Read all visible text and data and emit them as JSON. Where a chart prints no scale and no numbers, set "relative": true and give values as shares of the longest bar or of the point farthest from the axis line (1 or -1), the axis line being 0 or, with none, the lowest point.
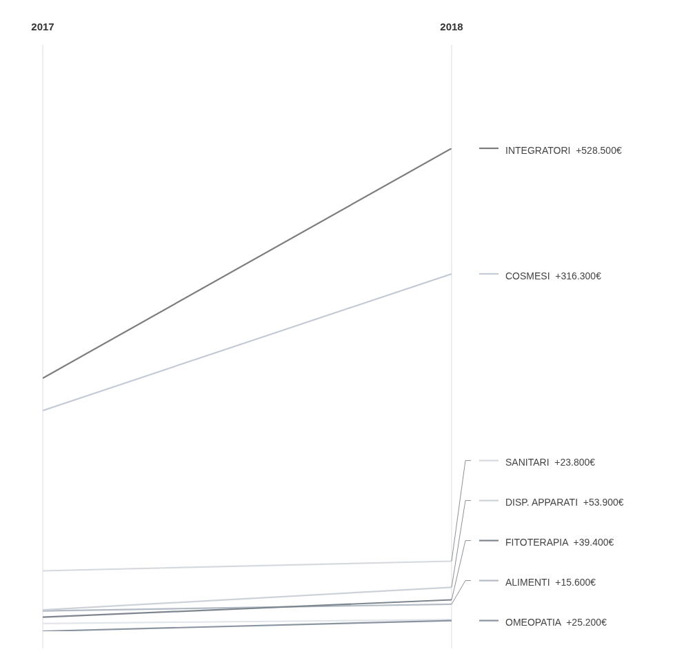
{
  "chart_data": {
    "type": "line",
    "relative": true,
    "x": [
      2017,
      2018
    ],
    "xlim": [
      2017,
      2018
    ],
    "xticks": [
      2017,
      2018
    ],
    "grid": "x",
    "legend": "right",
    "marker": "none",
    "line_style": "solid",
    "series": [
      {
        "name": "INTEGRATORI  +528.500€",
        "color": "#7c7c7c",
        "values": [
          0.524,
          1
        ]
      },
      {
        "name": "COSMESI  +316.300€",
        "color": "#c4cad4",
        "values": [
          0.457,
          0.74
        ]
      },
      {
        "name": "SANITARI  +23.800€",
        "color": "#d6dadf",
        "values": [
          0.125,
          0.145
        ]
      },
      {
        "name": "DISP. APPARATI  +53.900€",
        "color": "#cdd2d9",
        "values": [
          0.044,
          0.091
        ]
      },
      {
        "name": "FITOTERAPIA  +39.400€",
        "color": "#7d868f",
        "values": [
          0.029,
          0.065
        ]
      },
      {
        "name": "ALIMENTI  +15.600€",
        "color": "#b2bac4",
        "values": [
          0.042,
          0.056
        ]
      },
      {
        "name": "OMEOPATIA  +25.200€",
        "color": "#8a93a0",
        "values": [
          0,
          0.022
        ]
      },
      {
        "color": "#e2e6ea",
        "values": [
          0.016,
          0.024
        ]
      }
    ]
  }
}
